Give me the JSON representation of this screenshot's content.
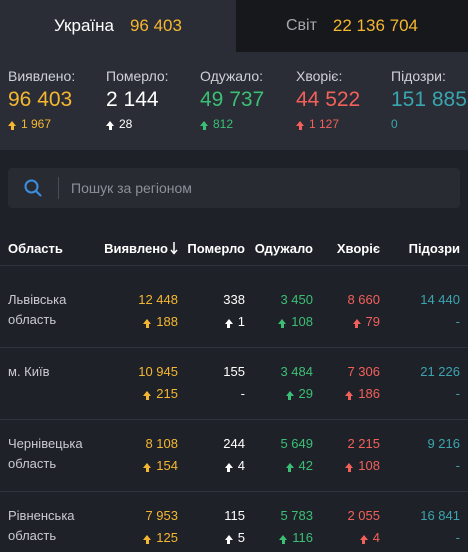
{
  "tabs": [
    {
      "name": "Україна",
      "value": "96 403"
    },
    {
      "name": "Світ",
      "value": "22 136 704"
    }
  ],
  "summary": [
    {
      "label": "Виявлено:",
      "value": "96 403",
      "delta": "1 967",
      "color": "yellow"
    },
    {
      "label": "Померло:",
      "value": "2 144",
      "delta": "28",
      "color": "white"
    },
    {
      "label": "Одужало:",
      "value": "49 737",
      "delta": "812",
      "color": "green"
    },
    {
      "label": "Хворіє:",
      "value": "44 522",
      "delta": "1 127",
      "color": "red"
    },
    {
      "label": "Підозри:",
      "value": "151 885",
      "delta": "0",
      "color": "teal"
    }
  ],
  "search": {
    "placeholder": "Пошук за регіоном",
    "icon": "search-icon"
  },
  "table": {
    "columns": [
      "Область",
      "Виявлено",
      "Померло",
      "Одужало",
      "Хворіє",
      "Підозри"
    ],
    "sort_icon": "sort-down-arrow-icon",
    "rows": [
      {
        "region": [
          "Львівська",
          "область"
        ],
        "confirmed": "12 448",
        "confirmed_delta": "188",
        "deaths": "338",
        "deaths_delta": "1",
        "recovered": "3 450",
        "recovered_delta": "108",
        "active": "8 660",
        "active_delta": "79",
        "suspected": "14 440",
        "suspected_delta": "-"
      },
      {
        "region": [
          "м. Київ"
        ],
        "confirmed": "10 945",
        "confirmed_delta": "215",
        "deaths": "155",
        "deaths_delta": "-",
        "recovered": "3 484",
        "recovered_delta": "29",
        "active": "7 306",
        "active_delta": "186",
        "suspected": "21 226",
        "suspected_delta": "-"
      },
      {
        "region": [
          "Чернівецька",
          "область"
        ],
        "confirmed": "8 108",
        "confirmed_delta": "154",
        "deaths": "244",
        "deaths_delta": "4",
        "recovered": "5 649",
        "recovered_delta": "42",
        "active": "2 215",
        "active_delta": "108",
        "suspected": "9 216",
        "suspected_delta": "-"
      },
      {
        "region": [
          "Рівненська",
          "область"
        ],
        "confirmed": "7 953",
        "confirmed_delta": "125",
        "deaths": "115",
        "deaths_delta": "5",
        "recovered": "5 783",
        "recovered_delta": "116",
        "active": "2 055",
        "active_delta": "4",
        "suspected": "16 841",
        "suspected_delta": "-"
      }
    ]
  },
  "colors": {
    "yellow": "#f5b731",
    "white": "#ffffff",
    "green": "#3bbf75",
    "red": "#f2605a",
    "teal": "#3aa5b0",
    "background": "#1f2128",
    "panel": "#2a2d35"
  }
}
